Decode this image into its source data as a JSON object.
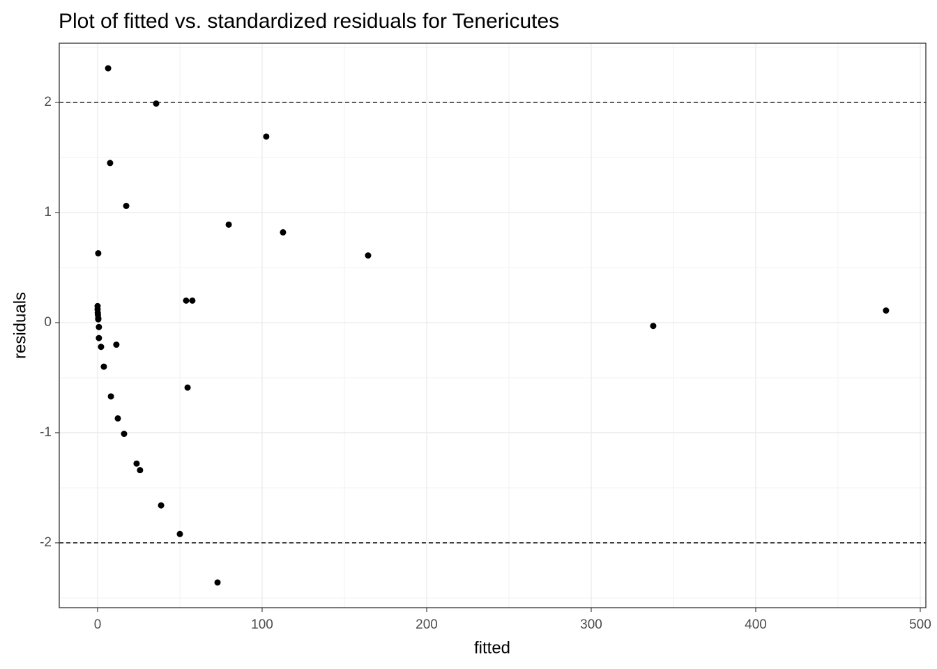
{
  "chart_data": {
    "type": "scatter",
    "title": "Plot of fitted vs. standardized residuals for Tenericutes",
    "x_label": "fitted",
    "y_label": "residuals",
    "xlim": [
      -23.3,
      503.4
    ],
    "ylim": [
      -2.589,
      2.538
    ],
    "xticks": [
      0,
      100,
      200,
      300,
      400,
      500
    ],
    "yticks": [
      -2,
      -1,
      0,
      1,
      2
    ],
    "grid": true,
    "minor_grid": true,
    "hlines": [
      2,
      -2
    ],
    "color": "#000000",
    "x": [
      6.4,
      35.6,
      102.5,
      7.6,
      17.4,
      79.7,
      112.7,
      164.4,
      0.4,
      53.8,
      57.6,
      0,
      0,
      0.1,
      0.2,
      0.4,
      0.4,
      0.8,
      0.8,
      2.1,
      11.4,
      3.8,
      479.2,
      337.7,
      54.7,
      8.1,
      12.3,
      16.1,
      23.7,
      25.8,
      38.6,
      50.0,
      72.9
    ],
    "values": [
      2.31,
      1.99,
      1.69,
      1.45,
      1.06,
      0.89,
      0.82,
      0.61,
      0.63,
      0.2,
      0.2,
      0.15,
      0.12,
      0.09,
      0.07,
      0.04,
      0.03,
      -0.04,
      -0.14,
      -0.22,
      -0.2,
      -0.4,
      0.11,
      -0.03,
      -0.59,
      -0.67,
      -0.87,
      -1.01,
      -1.28,
      -1.34,
      -1.66,
      -1.92,
      -2.36
    ]
  }
}
